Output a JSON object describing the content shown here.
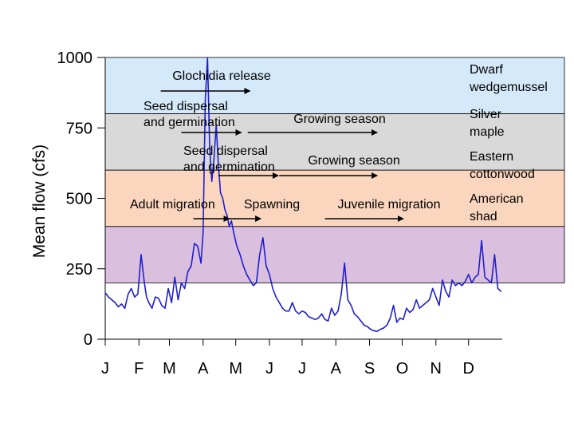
{
  "chart_data": {
    "type": "line",
    "title": "",
    "xlabel": "",
    "ylabel": "Mean flow (cfs)",
    "ylim": [
      0,
      1000
    ],
    "yticks": [
      "0",
      "250",
      "500",
      "750",
      "1000"
    ],
    "month_labels": [
      "J",
      "F",
      "M",
      "A",
      "M",
      "J",
      "J",
      "A",
      "S",
      "O",
      "N",
      "D"
    ],
    "xlim_days": [
      0,
      365
    ],
    "line_color": "#1f1fcf",
    "series": [
      {
        "x": [
          0,
          3,
          6,
          9,
          12,
          15,
          18,
          21,
          24,
          27,
          30,
          33,
          36,
          38,
          40,
          43,
          46,
          49,
          52,
          55,
          58,
          61,
          64,
          67,
          70,
          73,
          76,
          79,
          82,
          85,
          88,
          90,
          92,
          94,
          96,
          98,
          100,
          102,
          104,
          106,
          108,
          110,
          112,
          114,
          116,
          118,
          121,
          124,
          127,
          130,
          133,
          136,
          139,
          142,
          145,
          148,
          151,
          154,
          157,
          160,
          163,
          166,
          169,
          172,
          175,
          178,
          181,
          184,
          187,
          190,
          193,
          196,
          199,
          202,
          205,
          208,
          211,
          214,
          217,
          220,
          223,
          226,
          229,
          232,
          235,
          238,
          241,
          244,
          247,
          250,
          253,
          256,
          259,
          262,
          265,
          268,
          271,
          274,
          277,
          280,
          283,
          286,
          289,
          292,
          295,
          298,
          301,
          304,
          307,
          310,
          313,
          316,
          319,
          322,
          325,
          328,
          331,
          334,
          337,
          340,
          343,
          346,
          349,
          352,
          355,
          358,
          361,
          364
        ],
        "y": [
          165,
          150,
          140,
          130,
          115,
          125,
          110,
          160,
          180,
          150,
          160,
          300,
          200,
          150,
          130,
          110,
          150,
          145,
          120,
          110,
          180,
          130,
          220,
          140,
          200,
          180,
          240,
          260,
          340,
          330,
          270,
          380,
          850,
          1000,
          680,
          560,
          640,
          760,
          620,
          520,
          500,
          460,
          440,
          400,
          420,
          380,
          330,
          300,
          260,
          230,
          210,
          190,
          200,
          300,
          360,
          260,
          230,
          180,
          150,
          130,
          110,
          100,
          100,
          130,
          100,
          90,
          100,
          95,
          80,
          75,
          70,
          75,
          90,
          70,
          65,
          110,
          85,
          100,
          160,
          270,
          140,
          120,
          90,
          80,
          65,
          50,
          45,
          35,
          30,
          28,
          35,
          40,
          50,
          75,
          120,
          60,
          75,
          70,
          110,
          95,
          105,
          140,
          110,
          120,
          130,
          140,
          180,
          150,
          120,
          210,
          170,
          150,
          210,
          190,
          200,
          190,
          205,
          230,
          200,
          220,
          230,
          350,
          220,
          210,
          200,
          300,
          180,
          170
        ]
      }
    ],
    "bands": [
      {
        "species": [
          "Dwarf",
          "wedgemussel"
        ],
        "color": "#d4e9f9",
        "y_range": [
          800,
          1000
        ],
        "events": [
          {
            "lines": [
              "Glochidia release"
            ],
            "arrow_days": [
              51,
              133
            ]
          }
        ]
      },
      {
        "species": [
          "Silver",
          "maple"
        ],
        "color": "#d9d9d9",
        "y_range": [
          600,
          800
        ],
        "events": [
          {
            "lines": [
              "Seed dispersal",
              "and germination"
            ],
            "arrow_days": [
              70,
              125
            ]
          },
          {
            "lines": [
              "Growing season"
            ],
            "arrow_days": [
              131,
              250
            ]
          }
        ]
      },
      {
        "species": [
          "Eastern",
          "cottonwood"
        ],
        "color": "#fbd6bf",
        "y_range": [
          400,
          600
        ],
        "events": [
          {
            "lines": [
              "Seed dispersal",
              "and germination"
            ],
            "arrow_days": [
              104,
              159
            ]
          },
          {
            "lines": [
              "Growing season"
            ],
            "arrow_days": [
              160,
              250
            ]
          }
        ]
      },
      {
        "species": [
          "American",
          "shad"
        ],
        "color": "#dbbfde",
        "y_range": [
          200,
          400
        ],
        "events": [
          {
            "lines": [
              "Adult migration"
            ],
            "arrow_days": [
              81,
              114
            ]
          },
          {
            "lines": [
              "Spawning"
            ],
            "arrow_days": [
              114,
              143
            ]
          },
          {
            "lines": [
              "Juvenile migration"
            ],
            "arrow_days": [
              202,
              274
            ]
          }
        ]
      }
    ],
    "grid": false,
    "legend": "none"
  }
}
